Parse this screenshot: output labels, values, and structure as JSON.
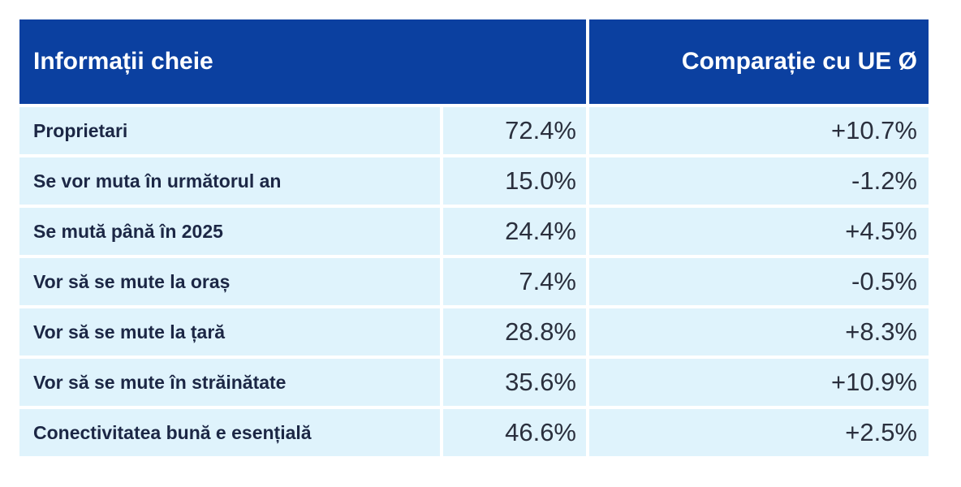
{
  "table": {
    "header": {
      "left": "Informații cheie",
      "right": "Comparație cu UE Ø"
    },
    "rows": [
      {
        "label": "Proprietari",
        "value": "72.4%",
        "compare": "+10.7%"
      },
      {
        "label": "Se vor muta în următorul an",
        "value": "15.0%",
        "compare": "-1.2%"
      },
      {
        "label": "Se mută până în 2025",
        "value": "24.4%",
        "compare": "+4.5%"
      },
      {
        "label": "Vor să se mute la oraș",
        "value": "7.4%",
        "compare": "-0.5%"
      },
      {
        "label": "Vor să se mute la țară",
        "value": "28.8%",
        "compare": "+8.3%"
      },
      {
        "label": "Vor să se mute în străinătate",
        "value": "35.6%",
        "compare": "+10.9%"
      },
      {
        "label": "Conectivitatea bună e esențială",
        "value": "46.6%",
        "compare": "+2.5%"
      }
    ]
  },
  "colors": {
    "header_bg": "#0b40a0",
    "row_bg": "#dff3fc",
    "label_text": "#1c2745",
    "value_text": "#2a2f3d"
  }
}
